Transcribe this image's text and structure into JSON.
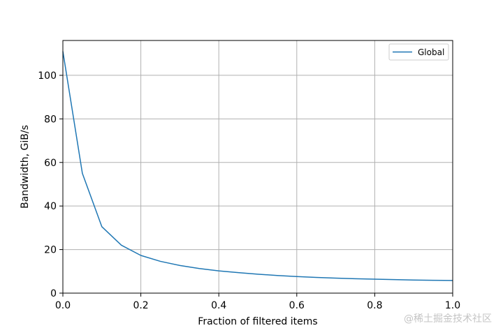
{
  "chart_data": {
    "type": "line",
    "xlabel": "Fraction of filtered items",
    "ylabel": "Bandwidth, GiB/s",
    "xlim": [
      0,
      1
    ],
    "ylim": [
      0,
      116
    ],
    "xticks": [
      0,
      0.2,
      0.4,
      0.6,
      0.8,
      1.0
    ],
    "xtick_labels": [
      "0.0",
      "0.2",
      "0.4",
      "0.6",
      "0.8",
      "1.0"
    ],
    "yticks": [
      0,
      20,
      40,
      60,
      80,
      100
    ],
    "ytick_labels": [
      "0",
      "20",
      "40",
      "60",
      "80",
      "100"
    ],
    "grid": true,
    "legend_position": "top-right",
    "series": [
      {
        "name": "Global",
        "color": "#1f77b4",
        "x": [
          0.0,
          0.05,
          0.1,
          0.15,
          0.2,
          0.25,
          0.3,
          0.35,
          0.4,
          0.45,
          0.5,
          0.55,
          0.6,
          0.65,
          0.7,
          0.75,
          0.8,
          0.85,
          0.9,
          0.95,
          1.0
        ],
        "y": [
          111,
          55,
          30.5,
          22,
          17.3,
          14.6,
          12.7,
          11.3,
          10.2,
          9.4,
          8.7,
          8.1,
          7.6,
          7.2,
          6.9,
          6.6,
          6.4,
          6.2,
          6.0,
          5.9,
          5.8
        ]
      }
    ]
  },
  "watermark": "@稀土掘金技术社区"
}
